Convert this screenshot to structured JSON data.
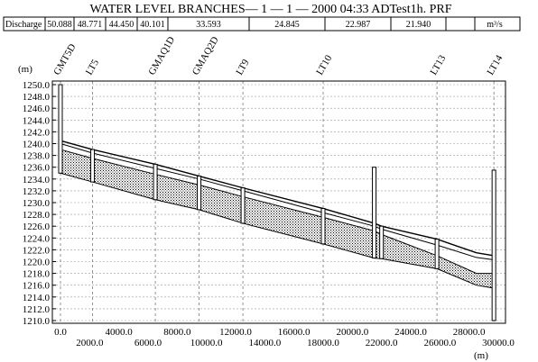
{
  "chart_data": {
    "type": "line",
    "title": "WATER LEVEL BRANCHES— 1 — 1 — 2000 04:33 ADTest1h. PRF",
    "y_unit": "(m)",
    "x_unit": "(m)",
    "xlim": [
      0,
      30000
    ],
    "ylim": [
      1210,
      1250
    ],
    "x_ticks_lower": [
      "0.0",
      "4000.0",
      "8000.0",
      "12000.0",
      "16000.0",
      "20000.0",
      "24000.0",
      "28000.0"
    ],
    "x_ticks_upper": [
      "2000.0",
      "6000.0",
      "10000.0",
      "14000.0",
      "18000.0",
      "22000.0",
      "26000.0",
      "30000.0"
    ],
    "y_ticks": [
      "1250.0",
      "1248.0",
      "1246.0",
      "1244.0",
      "1242.0",
      "1240.0",
      "1238.0",
      "1236.0",
      "1234.0",
      "1232.0",
      "1230.0",
      "1228.0",
      "1226.0",
      "1224.0",
      "1222.0",
      "1220.0",
      "1218.0",
      "1216.0",
      "1214.0",
      "1212.0",
      "1210.0"
    ],
    "grid": true,
    "discharge": {
      "label": "Discharge",
      "unit": "m³/s",
      "values": [
        "50.088",
        "48.771",
        "44.450",
        "40.101",
        "33.593",
        "24.845",
        "22.987",
        "21.940"
      ]
    },
    "stations": [
      {
        "name": "GMT5D",
        "x": 0
      },
      {
        "name": "LT5",
        "x": 2200
      },
      {
        "name": "GMAQ1D",
        "x": 6500
      },
      {
        "name": "GMAQ2D",
        "x": 9500
      },
      {
        "name": "LT9",
        "x": 12500
      },
      {
        "name": "LT10",
        "x": 18000
      },
      {
        "name": "LT13",
        "x": 25800
      },
      {
        "name": "LT14",
        "x": 29700
      }
    ],
    "series": [
      {
        "x": [
          0,
          2200,
          6500,
          9500,
          12500,
          18000,
          21500,
          22000,
          25800,
          28500,
          29700
        ],
        "y": [
          1240.5,
          1239.0,
          1236.5,
          1234.5,
          1232.5,
          1229.0,
          1226.5,
          1226.0,
          1223.8,
          1221.5,
          1221.0
        ]
      },
      {
        "x": [
          0,
          2200,
          6500,
          9500,
          12500,
          18000,
          21500,
          22000,
          25800,
          28500,
          29700
        ],
        "y": [
          1240.0,
          1238.4,
          1235.8,
          1234.0,
          1232.0,
          1228.3,
          1226.0,
          1225.5,
          1222.8,
          1220.7,
          1220.3
        ]
      },
      {
        "x": [
          0,
          2200,
          6500,
          9500,
          12500,
          18000,
          21500,
          22000,
          25800,
          28500,
          29700
        ],
        "y": [
          1239.0,
          1237.5,
          1234.8,
          1233.0,
          1231.0,
          1227.5,
          1225.2,
          1224.6,
          1221.0,
          1218.0,
          1218.0
        ]
      },
      {
        "x": [
          0,
          2200,
          6500,
          9500,
          12500,
          18000,
          21500,
          22000,
          25800,
          28500,
          29700
        ],
        "y": [
          1235.0,
          1233.5,
          1230.5,
          1228.8,
          1226.5,
          1223.0,
          1220.6,
          1220.5,
          1218.8,
          1216.0,
          1215.5
        ]
      }
    ],
    "structures": [
      {
        "x": 0,
        "top": 1250.0,
        "bottom": 1235.0
      },
      {
        "x": 2200,
        "top": 1239.0,
        "bottom": 1233.5
      },
      {
        "x": 6500,
        "top": 1236.5,
        "bottom": 1230.5
      },
      {
        "x": 9500,
        "top": 1234.5,
        "bottom": 1228.8
      },
      {
        "x": 12500,
        "top": 1232.5,
        "bottom": 1226.5
      },
      {
        "x": 18000,
        "top": 1229.0,
        "bottom": 1223.0
      },
      {
        "x": 21500,
        "top": 1236.0,
        "bottom": 1220.6
      },
      {
        "x": 22000,
        "top": 1226.0,
        "bottom": 1220.5
      },
      {
        "x": 25800,
        "top": 1223.8,
        "bottom": 1218.8
      },
      {
        "x": 29700,
        "top": 1235.5,
        "bottom": 1210.0
      }
    ]
  }
}
